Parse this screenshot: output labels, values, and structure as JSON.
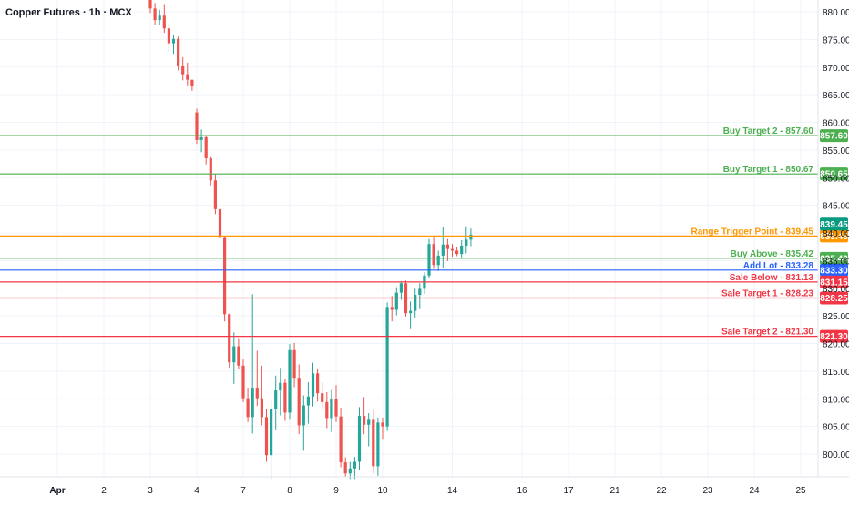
{
  "chart_title": "Copper Futures · 1h · MCX",
  "colors": {
    "up": "#26a69a",
    "down": "#ef5350",
    "grid": "#f0f3fa",
    "axis_text": "#131722",
    "green_line": "#4caf50",
    "orange_line": "#ff9800",
    "blue_line": "#2962ff",
    "red_line": "#f23645",
    "teal_tag": "#089981"
  },
  "chart_data": {
    "type": "candlestick",
    "title": "Copper Futures · 1h · MCX",
    "y_axis": {
      "side": "right",
      "ylim": [
        795,
        883
      ],
      "ticks": [
        800.0,
        805.0,
        810.0,
        815.0,
        820.0,
        825.0,
        830.0,
        835.0,
        840.0,
        845.0,
        850.0,
        855.0,
        860.0,
        865.0,
        870.0,
        875.0,
        880.0
      ]
    },
    "x_axis": {
      "labels": [
        "Apr",
        "2",
        "3",
        "4",
        "7",
        "8",
        "9",
        "10",
        "14",
        "16",
        "17",
        "21",
        "22",
        "23",
        "24",
        "25"
      ],
      "label_index": [
        -20,
        -10,
        0,
        10,
        20,
        30,
        40,
        50,
        65,
        80,
        90,
        100,
        110,
        120,
        130,
        140
      ]
    },
    "grid": true,
    "levels": [
      {
        "label": "Buy Target 2 - 857.60",
        "value": 857.6,
        "tag": "857.60",
        "color": "green"
      },
      {
        "label": "Buy Target 1 - 850.67",
        "value": 850.67,
        "tag": "850.65",
        "color": "green"
      },
      {
        "label": "Range Trigger Point - 839.45",
        "value": 839.45,
        "tag": "839.45",
        "color": "orange"
      },
      {
        "label": "Buy Above - 835.42",
        "value": 835.42,
        "tag": "835.40",
        "color": "green"
      },
      {
        "label": "Add Lot - 833.28",
        "value": 833.28,
        "tag": "833.30",
        "color": "blue"
      },
      {
        "label": "Sale Below  - 831.13",
        "value": 831.13,
        "tag": "831.15",
        "color": "red"
      },
      {
        "label": "Sale Target 1  - 828.23",
        "value": 828.23,
        "tag": "828.25",
        "color": "red"
      },
      {
        "label": "Sale Target 2  - 821.30",
        "value": 821.3,
        "tag": "821.30",
        "color": "red"
      }
    ],
    "last_price_tag": "839.45",
    "candles_ohlc": [
      [
        882.3,
        882.8,
        879.8,
        880.6
      ],
      [
        880.6,
        881.6,
        877.6,
        878.5
      ],
      [
        878.5,
        880.4,
        877.6,
        879.3
      ],
      [
        879.3,
        881.4,
        876.2,
        877.0
      ],
      [
        877.0,
        877.9,
        872.8,
        874.3
      ],
      [
        874.3,
        875.8,
        872.4,
        875.1
      ],
      [
        875.1,
        875.5,
        869.4,
        870.3
      ],
      [
        870.3,
        871.8,
        867.6,
        868.7
      ],
      [
        868.7,
        870.8,
        866.7,
        867.7
      ],
      [
        867.7,
        867.7,
        865.7,
        866.5
      ],
      [
        861.8,
        862.5,
        856.1,
        856.8
      ],
      [
        856.8,
        858.7,
        854.6,
        857.3
      ],
      [
        857.3,
        857.6,
        852.4,
        853.5
      ],
      [
        853.5,
        853.9,
        848.6,
        849.5
      ],
      [
        849.5,
        850.7,
        843.4,
        844.3
      ],
      [
        844.3,
        845.2,
        838.2,
        839.1
      ],
      [
        839.1,
        839.3,
        824.0,
        825.3
      ],
      [
        825.3,
        825.4,
        815.6,
        816.6
      ],
      [
        816.6,
        822.0,
        812.7,
        819.5
      ],
      [
        819.5,
        820.8,
        815.3,
        816.0
      ],
      [
        816.0,
        817.1,
        809.4,
        810.1
      ],
      [
        810.1,
        812.0,
        805.8,
        806.7
      ],
      [
        806.7,
        828.9,
        803.7,
        812.0
      ],
      [
        812.0,
        818.7,
        808.7,
        810.1
      ],
      [
        810.1,
        816.0,
        805.2,
        806.7
      ],
      [
        806.7,
        808.1,
        798.6,
        799.8
      ],
      [
        799.8,
        809.6,
        795.2,
        808.2
      ],
      [
        808.2,
        814.2,
        804.3,
        811.5
      ],
      [
        811.5,
        815.6,
        807.0,
        812.9
      ],
      [
        812.9,
        813.5,
        806.0,
        807.5
      ],
      [
        807.5,
        819.9,
        806.2,
        818.8
      ],
      [
        818.8,
        820.1,
        812.1,
        813.8
      ],
      [
        813.8,
        816.2,
        803.6,
        805.2
      ],
      [
        805.2,
        810.6,
        800.6,
        808.8
      ],
      [
        808.8,
        813.0,
        805.5,
        810.4
      ],
      [
        810.4,
        816.5,
        808.6,
        814.6
      ],
      [
        814.6,
        815.5,
        809.5,
        811.0
      ],
      [
        811.0,
        812.9,
        808.2,
        809.4
      ],
      [
        809.4,
        811.2,
        804.7,
        806.5
      ],
      [
        806.5,
        811.6,
        804.0,
        809.9
      ],
      [
        809.9,
        812.5,
        805.8,
        806.8
      ],
      [
        806.8,
        808.4,
        797.6,
        798.5
      ],
      [
        798.5,
        799.4,
        795.8,
        796.5
      ],
      [
        796.5,
        798.6,
        795.5,
        797.4
      ],
      [
        797.4,
        799.5,
        795.5,
        798.6
      ],
      [
        798.6,
        808.5,
        797.2,
        806.9
      ],
      [
        806.9,
        810.3,
        803.6,
        805.3
      ],
      [
        805.3,
        807.4,
        801.4,
        806.2
      ],
      [
        806.2,
        808.0,
        796.5,
        797.8
      ],
      [
        797.8,
        806.6,
        796.1,
        805.7
      ],
      [
        805.7,
        806.6,
        802.6,
        805.0
      ],
      [
        805.0,
        827.4,
        804.2,
        826.6
      ],
      [
        826.6,
        828.6,
        824.0,
        826.1
      ],
      [
        826.1,
        830.2,
        825.1,
        829.2
      ],
      [
        829.2,
        831.3,
        827.9,
        830.9
      ],
      [
        830.9,
        831.4,
        824.9,
        825.5
      ],
      [
        825.5,
        827.6,
        822.6,
        825.9
      ],
      [
        825.9,
        829.9,
        824.7,
        828.8
      ],
      [
        828.8,
        830.9,
        826.2,
        829.9
      ],
      [
        829.9,
        832.9,
        829.0,
        832.3
      ],
      [
        832.3,
        838.9,
        831.8,
        838.0
      ],
      [
        838.0,
        839.2,
        833.5,
        834.2
      ],
      [
        834.2,
        836.8,
        833.1,
        835.9
      ],
      [
        835.9,
        841.1,
        833.6,
        837.9
      ],
      [
        837.9,
        838.9,
        834.9,
        837.1
      ],
      [
        837.1,
        838.0,
        835.7,
        836.8
      ],
      [
        836.8,
        837.4,
        835.8,
        836.2
      ],
      [
        836.2,
        838.7,
        835.4,
        837.7
      ],
      [
        837.7,
        841.2,
        836.3,
        838.8
      ],
      [
        838.8,
        840.8,
        837.6,
        839.7
      ]
    ]
  }
}
